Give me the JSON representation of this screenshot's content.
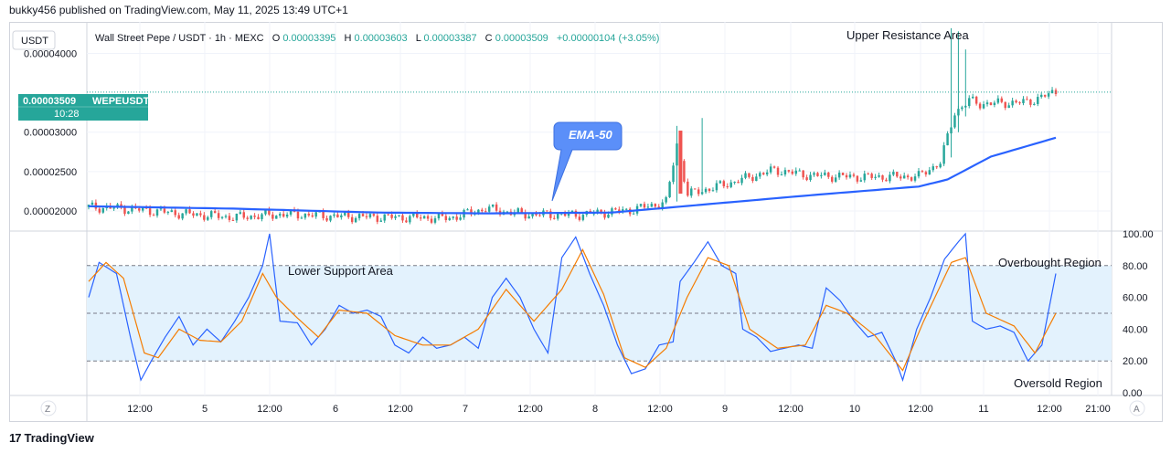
{
  "header": {
    "published": "bukky456 published on TradingView.com, May 11, 2025 13:49 UTC+1"
  },
  "legend": {
    "symbol": "Wall Street Pepe / USDT · 1h · MEXC",
    "o_label": "O",
    "o_value": "0.00003395",
    "h_label": "H",
    "h_value": "0.00003603",
    "l_label": "L",
    "l_value": "0.00003387",
    "c_label": "C",
    "c_value": "0.00003509",
    "change": "+0.00000104 (+3.05%)"
  },
  "currency_badge": "USDT",
  "price_tag": {
    "price": "0.00003509",
    "ticker": "WEPEUSDT",
    "countdown": "10:28"
  },
  "annotations": {
    "upper_resistance": "Upper Resistance Area",
    "ema_callout": "EMA-50",
    "lower_support": "Lower Support Area",
    "overbought": "Overbought Region",
    "oversold": "Oversold Region"
  },
  "time_axis": {
    "labels": [
      "12:00",
      "5",
      "12:00",
      "6",
      "12:00",
      "7",
      "12:00",
      "8",
      "12:00",
      "9",
      "12:00",
      "10",
      "12:00",
      "11",
      "12:00",
      "21:00"
    ],
    "left_button": "Z",
    "right_button": "A"
  },
  "footer": {
    "brand": "TradingView",
    "logo": "17"
  },
  "colors": {
    "up": "#26a69a",
    "down": "#ef5350",
    "ema": "#2962ff",
    "rsi": "#2962ff",
    "rsi_ma": "#f57c00",
    "rsi_band": "#e3f2fd",
    "price_tag": "#26a69a",
    "callout": "#5b8ff9"
  },
  "chart_data": [
    {
      "type": "candlestick",
      "title": "",
      "ylabel": "",
      "yticks": [
        "0.00004000",
        "0.00003000",
        "0.00002500",
        "0.00002000"
      ],
      "ylim": [
        1.78e-05,
        4.33e-05
      ],
      "current_price": 3.509e-05,
      "series": [
        {
          "name": "price",
          "type": "candles",
          "note_key": "keyframes [time_index, close]",
          "keyframes": [
            [
              0,
              2.05e-05
            ],
            [
              10,
              2.03e-05
            ],
            [
              25,
              1.97e-05
            ],
            [
              40,
              1.92e-05
            ],
            [
              55,
              1.96e-05
            ],
            [
              70,
              1.93e-05
            ],
            [
              85,
              1.92e-05
            ],
            [
              100,
              1.91e-05
            ],
            [
              110,
              2.03e-05
            ],
            [
              120,
              1.96e-05
            ],
            [
              135,
              1.95e-05
            ],
            [
              150,
              2.01e-05
            ],
            [
              160,
              2.11e-05
            ],
            [
              163,
              2.85e-05
            ],
            [
              166,
              2.21e-05
            ],
            [
              175,
              2.32e-05
            ],
            [
              190,
              2.52e-05
            ],
            [
              200,
              2.45e-05
            ],
            [
              215,
              2.43e-05
            ],
            [
              230,
              2.44e-05
            ],
            [
              236,
              2.62e-05
            ],
            [
              240,
              3.25e-05
            ],
            [
              244,
              3.4e-05
            ],
            [
              247,
              3.36e-05
            ],
            [
              260,
              3.38e-05
            ],
            [
              268,
              3.51e-05
            ]
          ]
        },
        {
          "name": "EMA-50",
          "type": "line",
          "keyframes": [
            [
              0,
              2.06e-05
            ],
            [
              40,
              2.03e-05
            ],
            [
              80,
              1.98e-05
            ],
            [
              110,
              1.97e-05
            ],
            [
              145,
              1.98e-05
            ],
            [
              160,
              2.04e-05
            ],
            [
              200,
              2.2e-05
            ],
            [
              230,
              2.31e-05
            ],
            [
              238,
              2.4e-05
            ],
            [
              250,
              2.69e-05
            ],
            [
              268,
              2.93e-05
            ]
          ]
        }
      ]
    },
    {
      "type": "line",
      "title": "",
      "ylabel": "",
      "yticks": [
        "100.00",
        "80.00",
        "60.00",
        "40.00",
        "20.00",
        "0.00"
      ],
      "ylim": [
        0,
        100
      ],
      "bands": [
        80,
        50,
        20
      ],
      "series": [
        {
          "name": "RSI",
          "color": "#2962ff",
          "keyframes": [
            [
              0,
              60
            ],
            [
              3,
              82
            ],
            [
              8,
              75
            ],
            [
              12,
              35
            ],
            [
              15,
              8
            ],
            [
              18,
              20
            ],
            [
              22,
              35
            ],
            [
              26,
              48
            ],
            [
              30,
              30
            ],
            [
              34,
              40
            ],
            [
              38,
              32
            ],
            [
              42,
              45
            ],
            [
              46,
              60
            ],
            [
              50,
              80
            ],
            [
              52,
              100
            ],
            [
              55,
              45
            ],
            [
              60,
              44
            ],
            [
              64,
              30
            ],
            [
              68,
              40
            ],
            [
              72,
              55
            ],
            [
              76,
              50
            ],
            [
              80,
              52
            ],
            [
              84,
              48
            ],
            [
              88,
              30
            ],
            [
              92,
              25
            ],
            [
              96,
              35
            ],
            [
              100,
              28
            ],
            [
              104,
              30
            ],
            [
              108,
              35
            ],
            [
              112,
              28
            ],
            [
              116,
              60
            ],
            [
              120,
              72
            ],
            [
              124,
              60
            ],
            [
              128,
              40
            ],
            [
              132,
              25
            ],
            [
              136,
              85
            ],
            [
              140,
              98
            ],
            [
              144,
              75
            ],
            [
              148,
              55
            ],
            [
              152,
              30
            ],
            [
              156,
              12
            ],
            [
              160,
              15
            ],
            [
              164,
              30
            ],
            [
              168,
              32
            ],
            [
              170,
              70
            ],
            [
              174,
              82
            ],
            [
              178,
              95
            ],
            [
              182,
              80
            ],
            [
              186,
              75
            ],
            [
              188,
              40
            ],
            [
              192,
              35
            ],
            [
              196,
              26
            ],
            [
              200,
              28
            ],
            [
              204,
              30
            ],
            [
              208,
              28
            ],
            [
              212,
              66
            ],
            [
              216,
              58
            ],
            [
              220,
              45
            ],
            [
              224,
              35
            ],
            [
              228,
              38
            ],
            [
              232,
              20
            ],
            [
              234,
              8
            ],
            [
              238,
              40
            ],
            [
              242,
              60
            ],
            [
              246,
              84
            ],
            [
              250,
              95
            ],
            [
              252,
              100
            ],
            [
              254,
              45
            ],
            [
              258,
              40
            ],
            [
              262,
              42
            ],
            [
              266,
              38
            ],
            [
              270,
              20
            ],
            [
              274,
              30
            ],
            [
              278,
              75
            ]
          ]
        },
        {
          "name": "RSI-based MA",
          "color": "#f57c00",
          "keyframes": [
            [
              0,
              70
            ],
            [
              5,
              82
            ],
            [
              10,
              72
            ],
            [
              16,
              25
            ],
            [
              20,
              22
            ],
            [
              26,
              40
            ],
            [
              32,
              33
            ],
            [
              38,
              32
            ],
            [
              44,
              45
            ],
            [
              50,
              75
            ],
            [
              54,
              60
            ],
            [
              60,
              47
            ],
            [
              66,
              35
            ],
            [
              72,
              52
            ],
            [
              80,
              50
            ],
            [
              88,
              36
            ],
            [
              96,
              30
            ],
            [
              104,
              30
            ],
            [
              112,
              40
            ],
            [
              120,
              65
            ],
            [
              128,
              45
            ],
            [
              136,
              65
            ],
            [
              142,
              90
            ],
            [
              148,
              62
            ],
            [
              154,
              22
            ],
            [
              160,
              16
            ],
            [
              166,
              28
            ],
            [
              172,
              60
            ],
            [
              178,
              85
            ],
            [
              184,
              80
            ],
            [
              190,
              40
            ],
            [
              198,
              28
            ],
            [
              206,
              30
            ],
            [
              212,
              55
            ],
            [
              218,
              50
            ],
            [
              226,
              36
            ],
            [
              234,
              14
            ],
            [
              240,
              45
            ],
            [
              248,
              82
            ],
            [
              252,
              85
            ],
            [
              258,
              50
            ],
            [
              266,
              42
            ],
            [
              272,
              25
            ],
            [
              278,
              50
            ]
          ]
        }
      ]
    }
  ]
}
